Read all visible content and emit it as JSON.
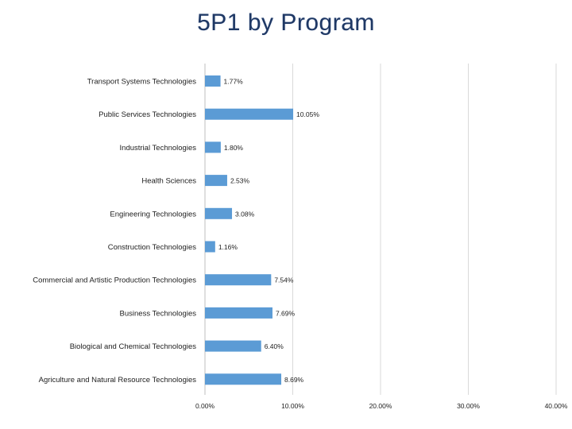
{
  "chart_data": {
    "type": "bar",
    "orientation": "horizontal",
    "title": "5P1 by Program",
    "xlabel": "",
    "ylabel": "",
    "xlim": [
      0,
      40
    ],
    "grid": true,
    "categories": [
      "Transport Systems Technologies",
      "Public Services Technologies",
      "Industrial Technologies",
      "Health Sciences",
      "Engineering Technologies",
      "Construction Technologies",
      "Commercial and Artistic Production Technologies",
      "Business Technologies",
      "Biological and Chemical Technologies",
      "Agriculture and Natural Resource Technologies"
    ],
    "values": [
      1.77,
      10.05,
      1.8,
      2.53,
      3.08,
      1.16,
      7.54,
      7.69,
      6.4,
      8.69
    ],
    "value_labels": [
      "1.77%",
      "10.05%",
      "1.80%",
      "2.53%",
      "3.08%",
      "1.16%",
      "7.54%",
      "7.69%",
      "6.40%",
      "8.69%"
    ],
    "x_ticks": [
      0,
      10,
      20,
      30,
      40
    ],
    "x_tick_labels": [
      "0.00%",
      "10.00%",
      "20.00%",
      "30.00%",
      "40.00%"
    ],
    "bar_color": "#5b9bd5"
  }
}
